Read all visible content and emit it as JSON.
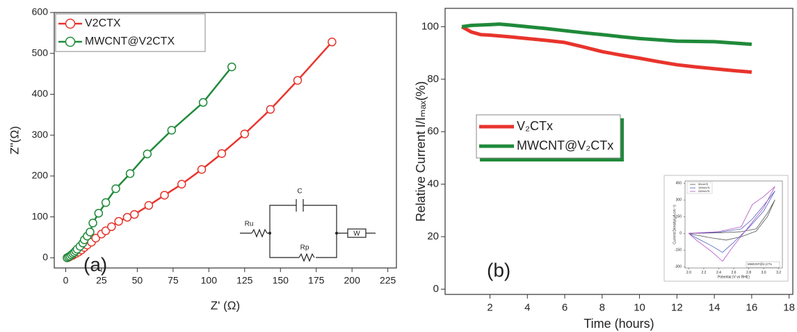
{
  "chart_data": [
    {
      "type": "line",
      "markers": true,
      "xlabel": "Z' (Ω)",
      "ylabel": "Z''(Ω)",
      "annotation": "(a)",
      "xlim": [
        -8,
        231
      ],
      "ylim": [
        -25,
        600
      ],
      "xticks": [
        0,
        25,
        50,
        75,
        100,
        125,
        150,
        175,
        200,
        225
      ],
      "yticks": [
        0,
        100,
        200,
        300,
        400,
        500,
        600
      ],
      "legend": "upper left",
      "series": [
        {
          "name": "V2CTX",
          "color": "#e8342c",
          "x": [
            1,
            2,
            3,
            5,
            7,
            9,
            11,
            13,
            15,
            18,
            21,
            25,
            28,
            32,
            37,
            43,
            48,
            58,
            69,
            81,
            95,
            109,
            125,
            143,
            162,
            186
          ],
          "values": [
            0,
            1,
            3,
            6,
            10,
            14,
            19,
            25,
            31,
            38,
            48,
            58,
            66,
            76,
            89,
            99,
            106,
            128,
            153,
            180,
            216,
            255,
            303,
            363,
            434,
            528
          ]
        },
        {
          "name": "MWCNT@V2CTX",
          "color": "#1f8a3a",
          "x": [
            1,
            2,
            3,
            4,
            5,
            6,
            7,
            8,
            10,
            12,
            13,
            15,
            17,
            19,
            23,
            28,
            35,
            45,
            57,
            74,
            96,
            116
          ],
          "values": [
            0,
            2,
            4,
            7,
            10,
            13,
            17,
            21,
            28,
            36,
            44,
            53,
            63,
            85,
            109,
            135,
            169,
            206,
            254,
            312,
            380,
            467
          ]
        }
      ],
      "circuit_labels": [
        "Ru",
        "C",
        "Rp",
        "W"
      ]
    },
    {
      "type": "line",
      "xlabel": "Time (hours)",
      "ylabel": "Relative Current I/Iₘₐₓ(%)",
      "annotation": "(b)",
      "xlim": [
        -0.4,
        18.2
      ],
      "ylim": [
        -2,
        107
      ],
      "xticks": [
        2,
        4,
        6,
        8,
        10,
        12,
        14,
        16,
        18
      ],
      "yticks": [
        0,
        20,
        40,
        60,
        80,
        100
      ],
      "legend": "center left",
      "series": [
        {
          "name": "V₂CTx",
          "color": "#e8342c",
          "x": [
            0.5,
            1,
            1.5,
            2,
            3,
            4,
            5,
            6,
            7,
            8,
            9,
            10,
            11,
            12,
            13,
            14,
            15,
            16
          ],
          "values": [
            100,
            98,
            97,
            96.8,
            96.2,
            95.5,
            94.8,
            94,
            92.3,
            90.5,
            89.2,
            88,
            86.7,
            85.5,
            84.7,
            84,
            83.3,
            82.7
          ]
        },
        {
          "name": "MWCNT@V₂CTx",
          "color": "#1f8a3a",
          "x": [
            0.5,
            1,
            2,
            2.5,
            3,
            4,
            5,
            6,
            7,
            8,
            9,
            10,
            11,
            12,
            13,
            14,
            15,
            16
          ],
          "values": [
            100,
            100.5,
            100.8,
            101,
            100.7,
            100,
            99.3,
            98.5,
            97.7,
            97,
            96.2,
            95.5,
            95,
            94.5,
            94.4,
            94.3,
            93.8,
            93.3
          ]
        }
      ]
    },
    {
      "type": "line",
      "xlabel": "Potential (V vs RHE)",
      "ylabel": "Current Density(µA cm⁻²)",
      "annotation": "MWCNT@V₂CTx",
      "xlim": [
        1.95,
        3.25
      ],
      "ylim": [
        -310,
        470
      ],
      "xticks": [
        {
          "value": 2.0,
          "label": "2.0"
        },
        2.2,
        2.4,
        2.6,
        2.8,
        {
          "value": 3.0,
          "label": "3.0"
        },
        3.2
      ],
      "yticks": [
        -300,
        -150,
        0,
        150,
        300,
        450
      ],
      "legend": "upper left",
      "series": [
        {
          "name": "50mV/S",
          "color": "#555555",
          "x": [
            2.0,
            2.4,
            2.7,
            2.9,
            3.05,
            3.15,
            3.05,
            2.9,
            2.7,
            2.5,
            2.3,
            2.1,
            2.0
          ],
          "values": [
            0,
            5,
            15,
            40,
            180,
            300,
            150,
            20,
            -30,
            -60,
            -40,
            -15,
            0
          ]
        },
        {
          "name": "150mV/S",
          "color": "#4a5fc1",
          "x": [
            2.0,
            2.4,
            2.7,
            2.85,
            3.0,
            3.15,
            3.0,
            2.8,
            2.6,
            2.45,
            2.3,
            2.1,
            2.0
          ],
          "values": [
            0,
            10,
            40,
            130,
            250,
            380,
            200,
            50,
            -80,
            -170,
            -110,
            -40,
            0
          ]
        },
        {
          "name": "250mV/S",
          "color": "#b04fc0",
          "x": [
            2.0,
            2.4,
            2.7,
            2.85,
            3.0,
            3.15,
            3.0,
            2.8,
            2.6,
            2.45,
            2.3,
            2.1,
            2.0
          ],
          "values": [
            0,
            15,
            60,
            260,
            330,
            420,
            230,
            60,
            -110,
            -250,
            -160,
            -60,
            0
          ]
        }
      ]
    }
  ]
}
